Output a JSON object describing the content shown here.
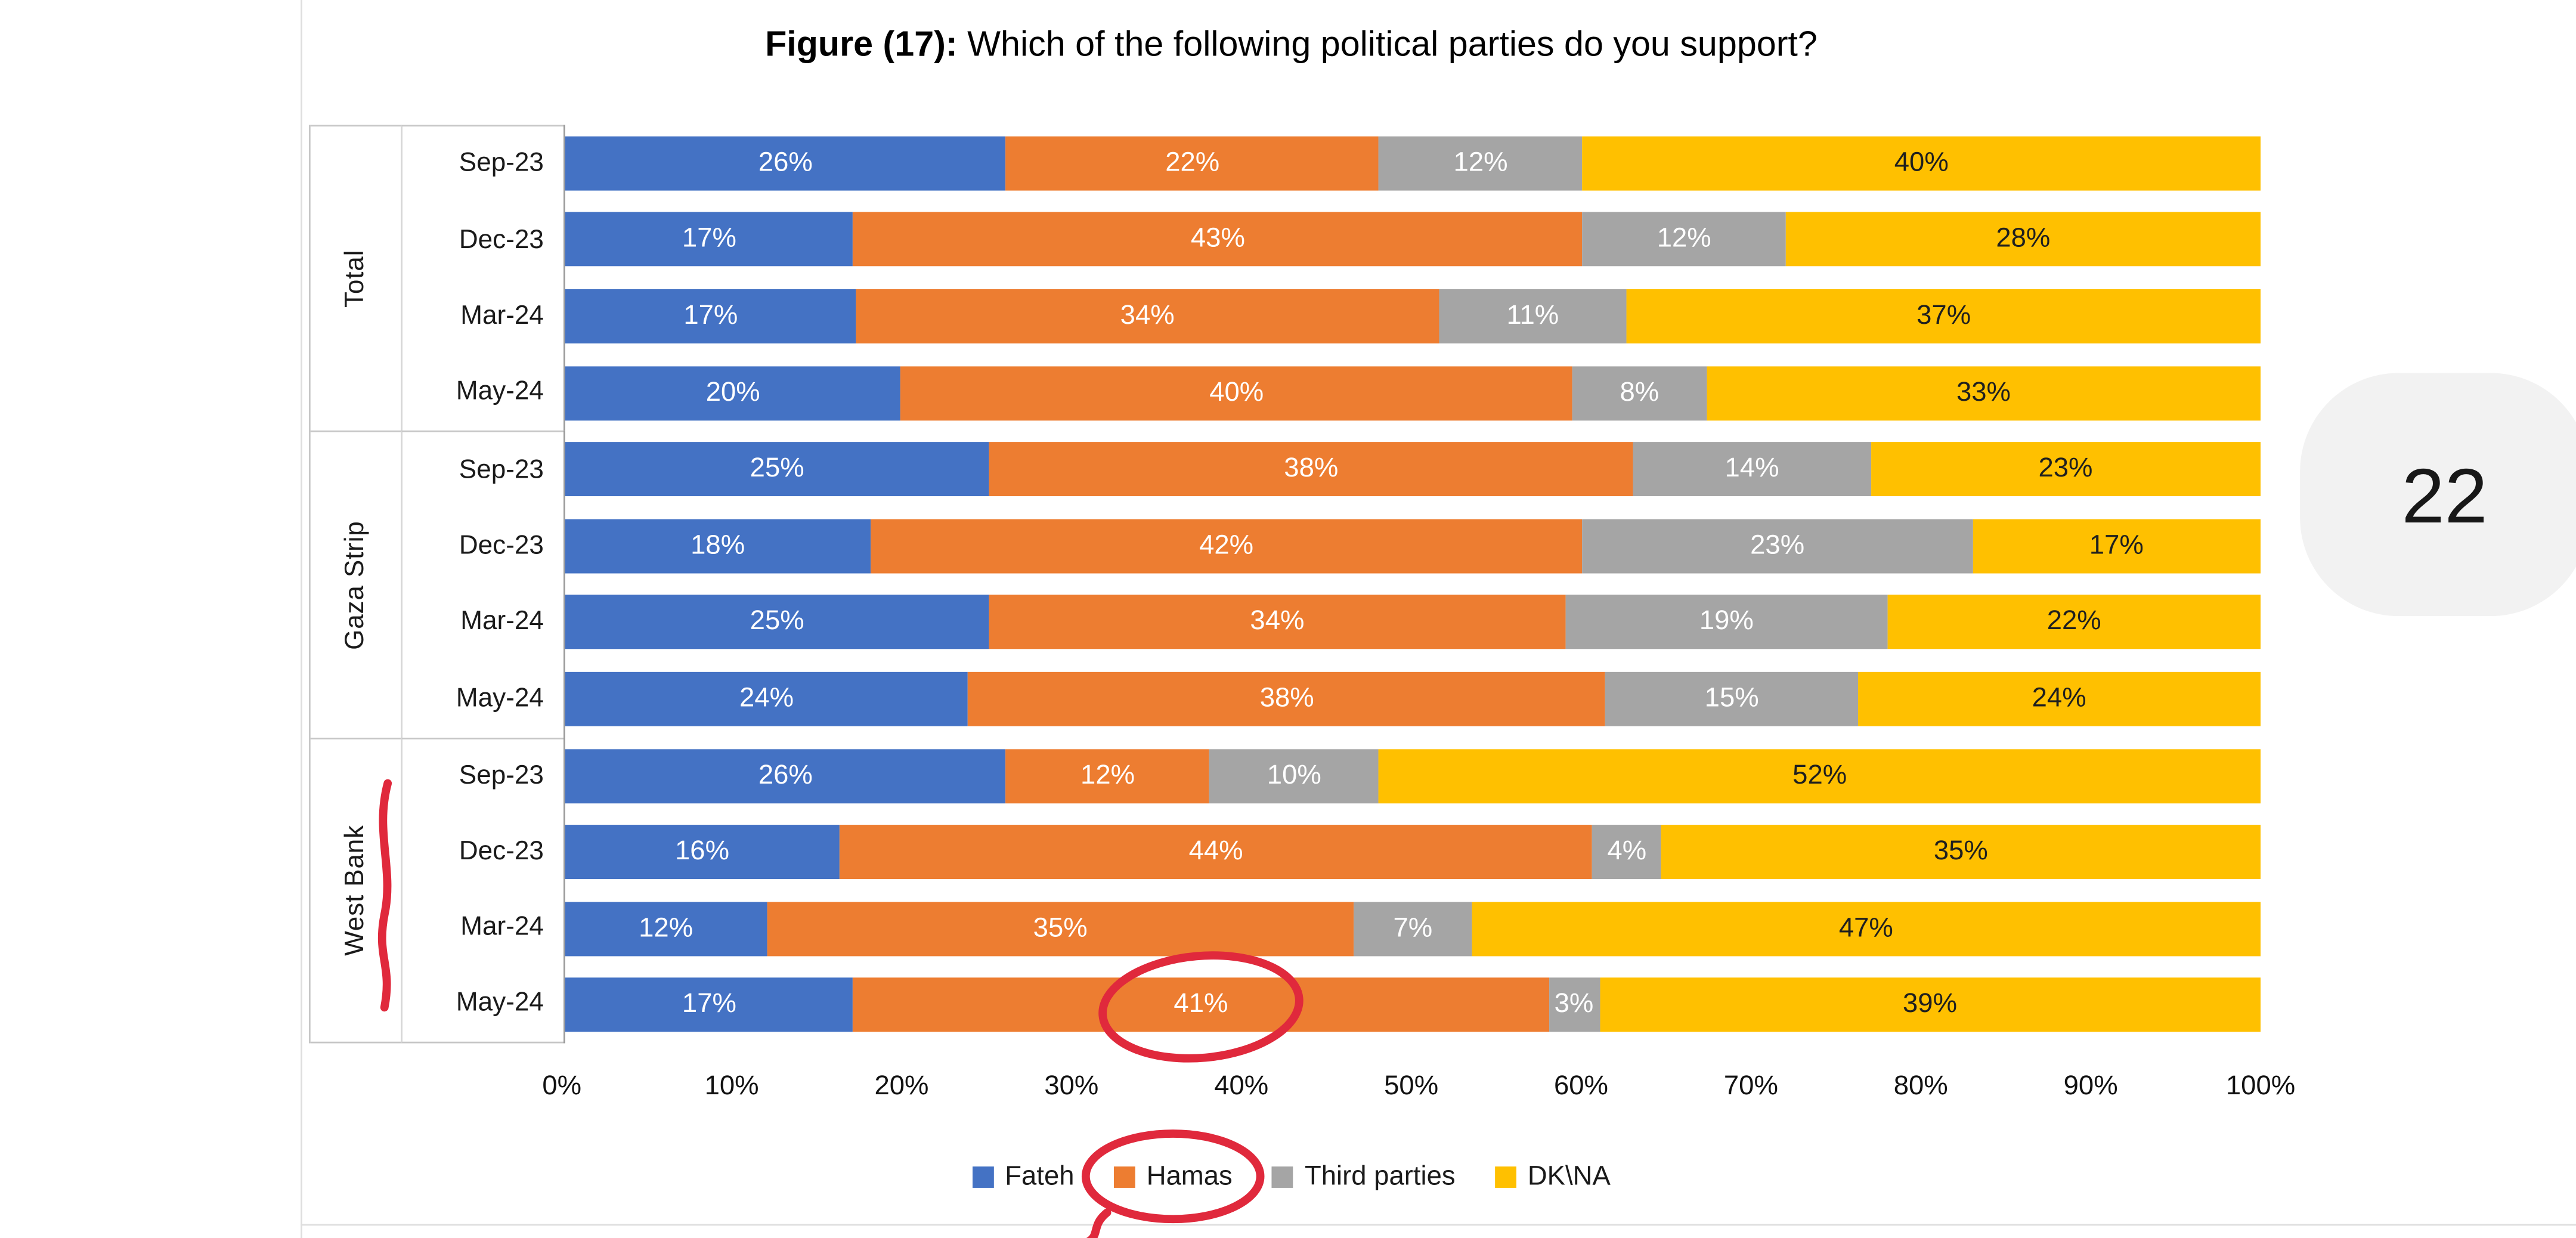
{
  "page": {
    "number": "22"
  },
  "chart_data": {
    "type": "bar",
    "stacked": true,
    "orientation": "horizontal",
    "title_prefix": "Figure (17):",
    "title_rest": " Which of the following political parties do you support?",
    "series": [
      {
        "name": "Fateh",
        "color": "#4472C4",
        "label_color": "#FFFFFF"
      },
      {
        "name": "Hamas",
        "color": "#ED7D31",
        "label_color": "#FFFFFF"
      },
      {
        "name": "Third parties",
        "color": "#A5A5A5",
        "label_color": "#FFFFFF"
      },
      {
        "name": "DK\\NA",
        "color": "#FFC000",
        "label_color": "#1f1f1f"
      }
    ],
    "groups": [
      {
        "label": "Total",
        "rows": [
          {
            "period": "Sep-23",
            "values": [
              26,
              22,
              12,
              40
            ]
          },
          {
            "period": "Dec-23",
            "values": [
              17,
              43,
              12,
              28
            ]
          },
          {
            "period": "Mar-24",
            "values": [
              17,
              34,
              11,
              37
            ]
          },
          {
            "period": "May-24",
            "values": [
              20,
              40,
              8,
              33
            ]
          }
        ]
      },
      {
        "label": "Gaza Strip",
        "rows": [
          {
            "period": "Sep-23",
            "values": [
              25,
              38,
              14,
              23
            ]
          },
          {
            "period": "Dec-23",
            "values": [
              18,
              42,
              23,
              17
            ]
          },
          {
            "period": "Mar-24",
            "values": [
              25,
              34,
              19,
              22
            ]
          },
          {
            "period": "May-24",
            "values": [
              24,
              38,
              15,
              24
            ]
          }
        ]
      },
      {
        "label": "West Bank",
        "rows": [
          {
            "period": "Sep-23",
            "values": [
              26,
              12,
              10,
              52
            ]
          },
          {
            "period": "Dec-23",
            "values": [
              16,
              44,
              4,
              35
            ]
          },
          {
            "period": "Mar-24",
            "values": [
              12,
              35,
              7,
              47
            ]
          },
          {
            "period": "May-24",
            "values": [
              17,
              41,
              3,
              39
            ]
          }
        ]
      }
    ],
    "x_ticks": [
      "0%",
      "10%",
      "20%",
      "30%",
      "40%",
      "50%",
      "60%",
      "70%",
      "80%",
      "90%",
      "100%"
    ],
    "xlim": [
      0,
      100
    ],
    "value_suffix": "%",
    "legend_position": "bottom"
  },
  "annotations": {
    "color": "#e0293c",
    "circled_value": "41%",
    "circled_legend": "Hamas",
    "marked_group": "West Bank"
  }
}
